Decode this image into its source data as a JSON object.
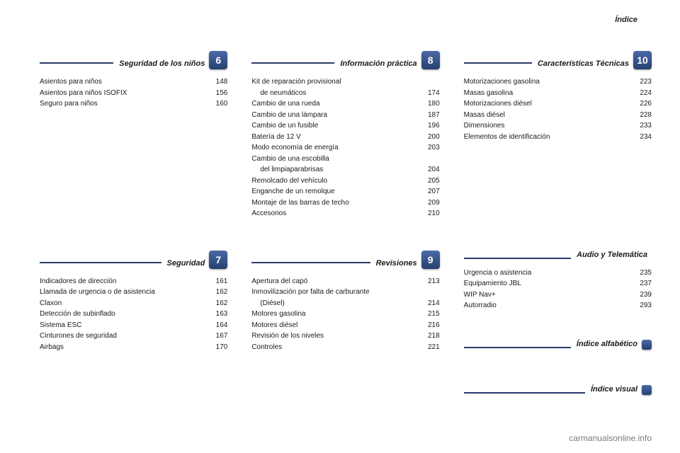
{
  "header": {
    "indice": "Índice"
  },
  "footer": {
    "watermark": "carmanualsonline.info"
  },
  "style": {
    "rule_color": "#2a3a6a",
    "chip_gradient_top": "#4a6aa8",
    "chip_gradient_bottom": "#26406f",
    "text_color": "#1a1a1a",
    "bg": "#ffffff",
    "font_size_body": 10
  },
  "sections": {
    "s6": {
      "title": "Seguridad de los niños",
      "number": "6",
      "items": [
        {
          "label": "Asientos para niños",
          "page": "148"
        },
        {
          "label": "Asientos para niños ISOFIX",
          "page": "156"
        },
        {
          "label": "Seguro para niños",
          "page": "160"
        }
      ]
    },
    "s7": {
      "title": "Seguridad",
      "number": "7",
      "items": [
        {
          "label": "Indicadores de dirección",
          "page": "161"
        },
        {
          "label": "Llamada de urgencia o de asistencia",
          "page": "162"
        },
        {
          "label": "Claxon",
          "page": "162"
        },
        {
          "label": "Detección de subinflado",
          "page": "163"
        },
        {
          "label": "Sistema ESC",
          "page": "164"
        },
        {
          "label": "Cinturones de seguridad",
          "page": "167"
        },
        {
          "label": "Airbags",
          "page": "170"
        }
      ]
    },
    "s8": {
      "title": "Información práctica",
      "number": "8",
      "items": [
        {
          "label": "Kit de reparación provisional",
          "cont": "de neumáticos",
          "page": "174"
        },
        {
          "label": "Cambio de una rueda",
          "page": "180"
        },
        {
          "label": "Cambio de una lámpara",
          "page": "187"
        },
        {
          "label": "Cambio de un fusible",
          "page": "196"
        },
        {
          "label": "Batería de 12 V",
          "page": "200"
        },
        {
          "label": "Modo economía de energía",
          "page": "203"
        },
        {
          "label": "Cambio de una escobilla",
          "cont": "del limpiaparabrisas",
          "page": "204"
        },
        {
          "label": "Remolcado del vehículo",
          "page": "205"
        },
        {
          "label": "Enganche de un remolque",
          "page": "207"
        },
        {
          "label": "Montaje de las barras de techo",
          "page": "209"
        },
        {
          "label": "Accesorios",
          "page": "210"
        }
      ]
    },
    "s9": {
      "title": "Revisiones",
      "number": "9",
      "items": [
        {
          "label": "Apertura del capó",
          "page": "213"
        },
        {
          "label": "Inmovilización por falta de carburante",
          "cont": "(Diésel)",
          "page": "214"
        },
        {
          "label": "Motores gasolina",
          "page": "215"
        },
        {
          "label": "Motores diésel",
          "page": "216"
        },
        {
          "label": "Revisión de los niveles",
          "page": "218"
        },
        {
          "label": "Controles",
          "page": "221"
        }
      ]
    },
    "s10": {
      "title": "Características Técnicas",
      "number": "10",
      "items": [
        {
          "label": "Motorizaciones gasolina",
          "page": "223"
        },
        {
          "label": "Masas gasolina",
          "page": "224"
        },
        {
          "label": "Motorizaciones diésel",
          "page": "226"
        },
        {
          "label": "Masas diésel",
          "page": "228"
        },
        {
          "label": "Dimensiones",
          "page": "233"
        },
        {
          "label": "Elementos de identificación",
          "page": "234"
        }
      ]
    },
    "audio": {
      "title": "Audio y Telemática",
      "items": [
        {
          "label": "Urgencia o asistencia",
          "page": "235"
        },
        {
          "label": "Equipamiento JBL",
          "page": "237"
        },
        {
          "label": "WIP Nav+",
          "page": "239"
        },
        {
          "label": "Autorradio",
          "page": "293"
        }
      ]
    },
    "alpha": {
      "title": "Índice alfabético"
    },
    "visual": {
      "title": "Índice visual"
    }
  }
}
